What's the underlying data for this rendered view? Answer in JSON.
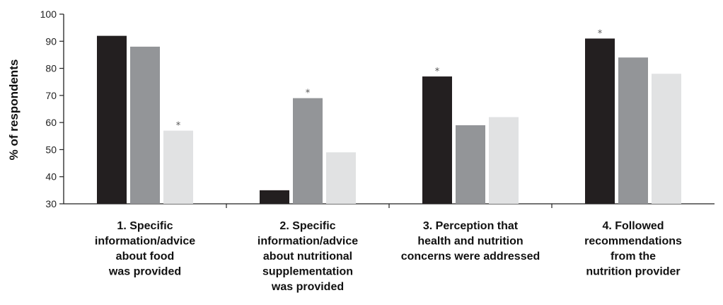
{
  "chart_data": {
    "type": "bar",
    "ylabel": "% of respondents",
    "xlabel": "",
    "ylim": [
      30,
      100
    ],
    "yticks": [
      "30",
      "40",
      "50",
      "60",
      "70",
      "80",
      "90",
      "100"
    ],
    "categories": [
      "1. Specific information/advice about food was provided",
      "2. Specific information/advice about nutritional supplementation was provided",
      "3. Perception that health and nutrition concerns were addressed",
      "4. Followed recommendations from the nutrition provider"
    ],
    "category_label_lines": [
      [
        "1. Specific",
        "information/advice",
        "about food",
        "was provided"
      ],
      [
        "2. Specific",
        "information/advice",
        "about nutritional",
        "supplementation",
        "was provided"
      ],
      [
        "3. Perception that",
        "health and nutrition",
        "concerns were addressed"
      ],
      [
        "4. Followed",
        "recommendations",
        "from the",
        "nutrition provider"
      ]
    ],
    "series": [
      {
        "color": "#231f20",
        "values": [
          92,
          35,
          77,
          91
        ],
        "significant": [
          false,
          false,
          true,
          true
        ]
      },
      {
        "color": "#939598",
        "values": [
          88,
          69,
          59,
          84
        ],
        "significant": [
          false,
          true,
          false,
          false
        ]
      },
      {
        "color": "#e1e2e3",
        "values": [
          57,
          49,
          62,
          78
        ],
        "significant": [
          true,
          false,
          false,
          false
        ]
      }
    ],
    "significance_marker": "*",
    "grid": false,
    "legend": "none"
  }
}
